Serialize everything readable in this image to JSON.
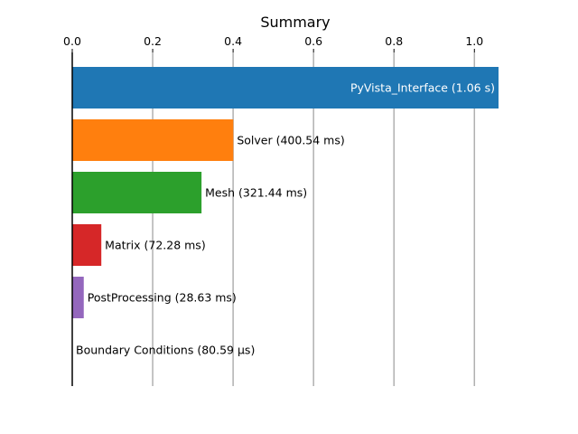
{
  "chart_data": {
    "type": "bar",
    "orientation": "horizontal",
    "title": "Summary",
    "xlabel": "",
    "ylabel": "",
    "xlim": [
      0,
      1.06
    ],
    "x_ticks": [
      "0.0",
      "0.2",
      "0.4",
      "0.6",
      "0.8",
      "1.0"
    ],
    "x_tick_values": [
      0.0,
      0.2,
      0.4,
      0.6,
      0.8,
      1.0
    ],
    "x_axis_position": "top",
    "grid": "vertical",
    "categories": [
      "PyVista_Interface",
      "Solver",
      "Mesh",
      "Matrix",
      "PostProcessing",
      "Boundary Conditions"
    ],
    "values": [
      1.06,
      0.40054,
      0.32144,
      0.07228,
      0.02863,
      8.059e-05
    ],
    "labels": [
      "PyVista_Interface (1.06 s)",
      "Solver (400.54 ms)",
      "Mesh (321.44 ms)",
      "Matrix (72.28 ms)",
      "PostProcessing (28.63 ms)",
      "Boundary Conditions (80.59 µs)"
    ],
    "colors": [
      "#1f77b4",
      "#ff7f0e",
      "#2ca02c",
      "#d62728",
      "#9467bd",
      "#8c564b"
    ],
    "label_inside": [
      true,
      false,
      false,
      false,
      false,
      false
    ]
  }
}
